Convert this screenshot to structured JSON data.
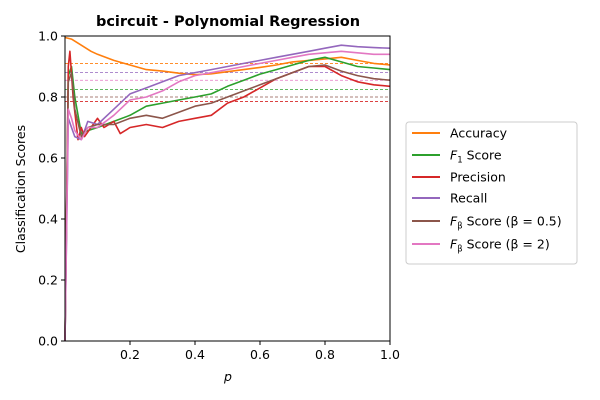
{
  "chart_data": {
    "type": "line",
    "title": "bcircuit - Polynomial Regression",
    "xlabel": "p",
    "ylabel": "Classification Scores",
    "xlim": [
      0.0,
      1.0
    ],
    "ylim": [
      0.0,
      1.0
    ],
    "xticks": [
      "0.2",
      "0.4",
      "0.6",
      "0.8",
      "1.0"
    ],
    "yticks": [
      "0.0",
      "0.2",
      "0.4",
      "0.6",
      "0.8",
      "1.0"
    ],
    "grid": false,
    "legend_position": "right, outside plot",
    "series": [
      {
        "name": "Accuracy",
        "legend_main": "Accuracy",
        "legend_sub": "",
        "legend_tail": "",
        "color": "#ff7f0e",
        "reference_line": 0.91,
        "x": [
          0.0,
          0.02,
          0.05,
          0.08,
          0.1,
          0.15,
          0.2,
          0.25,
          0.3,
          0.35,
          0.4,
          0.45,
          0.5,
          0.55,
          0.6,
          0.65,
          0.7,
          0.75,
          0.8,
          0.85,
          0.9,
          0.95,
          1.0
        ],
        "y": [
          0.995,
          0.99,
          0.97,
          0.95,
          0.94,
          0.92,
          0.905,
          0.89,
          0.885,
          0.878,
          0.873,
          0.876,
          0.883,
          0.89,
          0.897,
          0.905,
          0.915,
          0.92,
          0.925,
          0.93,
          0.92,
          0.91,
          0.905
        ]
      },
      {
        "name": "F1 Score",
        "legend_main": "F",
        "legend_sub": "1",
        "legend_tail": " Score",
        "color": "#2ca02c",
        "reference_line": 0.825,
        "x": [
          0.0,
          0.01,
          0.02,
          0.03,
          0.05,
          0.07,
          0.1,
          0.15,
          0.2,
          0.25,
          0.3,
          0.35,
          0.4,
          0.45,
          0.5,
          0.55,
          0.6,
          0.65,
          0.7,
          0.75,
          0.8,
          0.85,
          0.9,
          0.95,
          1.0
        ],
        "y": [
          0.0,
          0.87,
          0.9,
          0.8,
          0.68,
          0.69,
          0.7,
          0.72,
          0.74,
          0.77,
          0.78,
          0.79,
          0.8,
          0.81,
          0.835,
          0.855,
          0.875,
          0.89,
          0.905,
          0.92,
          0.93,
          0.915,
          0.9,
          0.895,
          0.89
        ]
      },
      {
        "name": "Precision",
        "legend_main": "Precision",
        "legend_sub": "",
        "legend_tail": "",
        "color": "#d62728",
        "reference_line": 0.785,
        "x": [
          0.0,
          0.01,
          0.015,
          0.025,
          0.04,
          0.05,
          0.06,
          0.08,
          0.1,
          0.12,
          0.15,
          0.17,
          0.2,
          0.25,
          0.3,
          0.35,
          0.4,
          0.45,
          0.5,
          0.55,
          0.6,
          0.65,
          0.7,
          0.75,
          0.8,
          0.85,
          0.9,
          0.95,
          1.0
        ],
        "y": [
          0.0,
          0.9,
          0.95,
          0.8,
          0.66,
          0.7,
          0.67,
          0.7,
          0.73,
          0.7,
          0.72,
          0.68,
          0.7,
          0.71,
          0.7,
          0.72,
          0.73,
          0.74,
          0.78,
          0.8,
          0.83,
          0.86,
          0.88,
          0.9,
          0.9,
          0.87,
          0.85,
          0.84,
          0.835
        ]
      },
      {
        "name": "Recall",
        "legend_main": "Recall",
        "legend_sub": "",
        "legend_tail": "",
        "color": "#9467bd",
        "reference_line": 0.88,
        "x": [
          0.0,
          0.01,
          0.02,
          0.03,
          0.05,
          0.07,
          0.1,
          0.15,
          0.2,
          0.25,
          0.3,
          0.35,
          0.4,
          0.45,
          0.5,
          0.55,
          0.6,
          0.65,
          0.7,
          0.75,
          0.8,
          0.85,
          0.9,
          0.95,
          1.0
        ],
        "y": [
          0.0,
          0.73,
          0.7,
          0.67,
          0.66,
          0.72,
          0.71,
          0.76,
          0.81,
          0.83,
          0.85,
          0.87,
          0.88,
          0.89,
          0.9,
          0.91,
          0.92,
          0.93,
          0.94,
          0.95,
          0.96,
          0.97,
          0.965,
          0.962,
          0.96
        ]
      },
      {
        "name": "Fβ Score (β = 0.5)",
        "legend_main": "F",
        "legend_sub": "β",
        "legend_tail": " Score (β = 0.5)",
        "color": "#8c564b",
        "reference_line": 0.8,
        "x": [
          0.0,
          0.01,
          0.02,
          0.03,
          0.05,
          0.07,
          0.1,
          0.15,
          0.2,
          0.25,
          0.3,
          0.35,
          0.4,
          0.45,
          0.5,
          0.55,
          0.6,
          0.65,
          0.7,
          0.75,
          0.8,
          0.85,
          0.9,
          0.95,
          1.0
        ],
        "y": [
          0.0,
          0.85,
          0.88,
          0.76,
          0.67,
          0.7,
          0.71,
          0.71,
          0.73,
          0.74,
          0.73,
          0.75,
          0.77,
          0.78,
          0.8,
          0.82,
          0.84,
          0.86,
          0.88,
          0.9,
          0.905,
          0.885,
          0.87,
          0.86,
          0.855
        ]
      },
      {
        "name": "Fβ Score (β = 2)",
        "legend_main": "F",
        "legend_sub": "β",
        "legend_tail": " Score (β = 2)",
        "color": "#e377c2",
        "reference_line": 0.855,
        "x": [
          0.0,
          0.01,
          0.02,
          0.03,
          0.05,
          0.07,
          0.1,
          0.15,
          0.2,
          0.25,
          0.3,
          0.35,
          0.4,
          0.45,
          0.5,
          0.55,
          0.6,
          0.65,
          0.7,
          0.75,
          0.8,
          0.85,
          0.9,
          0.95,
          1.0
        ],
        "y": [
          0.0,
          0.76,
          0.73,
          0.69,
          0.66,
          0.7,
          0.7,
          0.74,
          0.79,
          0.8,
          0.82,
          0.85,
          0.87,
          0.88,
          0.89,
          0.9,
          0.91,
          0.92,
          0.93,
          0.94,
          0.945,
          0.95,
          0.945,
          0.94,
          0.94
        ]
      }
    ]
  }
}
